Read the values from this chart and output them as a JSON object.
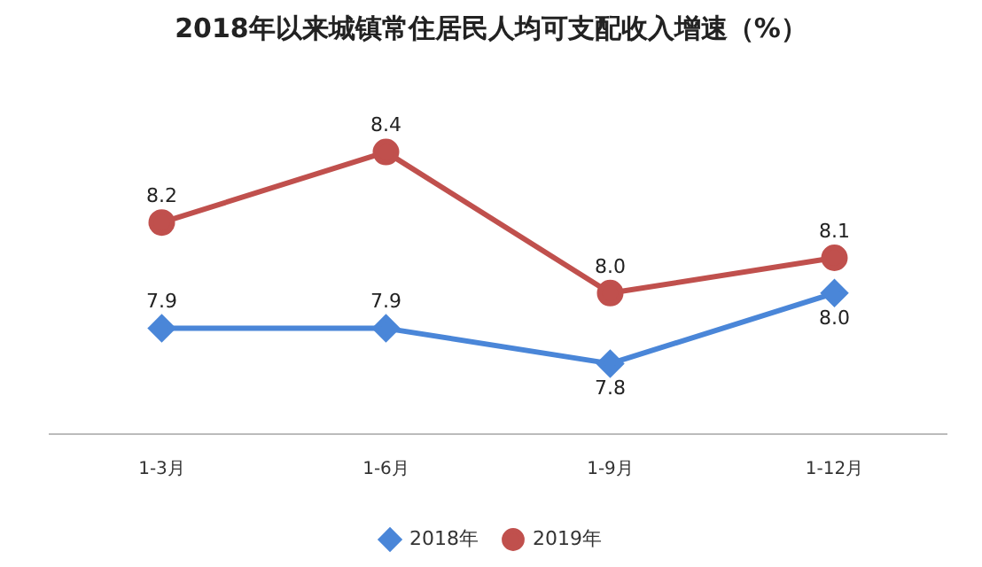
{
  "chart_data": {
    "type": "line",
    "title": "2018年以来城镇常住居民人均可支配收入增速（%）",
    "categories": [
      "1-3月",
      "1-6月",
      "1-9月",
      "1-12月"
    ],
    "series": [
      {
        "name": "2018年",
        "color": "#4a86d8",
        "marker": "diamond",
        "values": [
          7.9,
          7.9,
          7.8,
          8.0
        ],
        "value_labels": [
          "7.9",
          "7.9",
          "7.8",
          "8.0"
        ]
      },
      {
        "name": "2019年",
        "color": "#c0504d",
        "marker": "circle",
        "values": [
          8.2,
          8.4,
          8.0,
          8.1
        ],
        "value_labels": [
          "8.2",
          "8.4",
          "8.0",
          "8.1"
        ]
      }
    ],
    "tick_labels": "x",
    "grid": false,
    "legend": "bottom"
  }
}
